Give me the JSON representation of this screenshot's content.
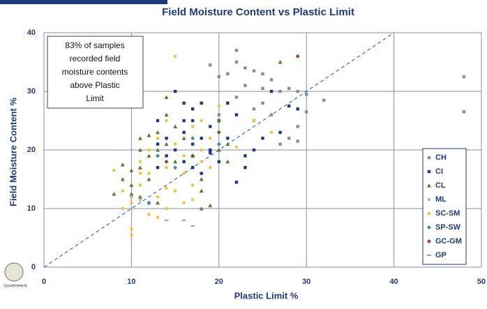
{
  "chart_data": {
    "type": "scatter",
    "title": "Field Moisture Content vs Plastic Limit",
    "x_label": "Plastic Limit %",
    "y_label": "Field Moisture Content %",
    "annotation": [
      "83% of samples",
      "recorded field",
      "moisture contents",
      "above Plastic",
      "Limit"
    ],
    "logo_text": "Government",
    "xlim": [
      0,
      50
    ],
    "ylim": [
      0,
      40
    ],
    "xticks": [
      0,
      10,
      20,
      30,
      40,
      50
    ],
    "yticks": [
      0,
      10,
      20,
      30,
      40
    ],
    "grid": true,
    "legend": "lower right",
    "series": [
      {
        "name": "CH",
        "color": "#8c8c8c",
        "marker": "square",
        "x": [
          19,
          20,
          22,
          21,
          22,
          23,
          24,
          25,
          26,
          27,
          28,
          29,
          30,
          30,
          32,
          48,
          48,
          29,
          29,
          27,
          28,
          25,
          24,
          22,
          21,
          20,
          26,
          23,
          25,
          24
        ],
        "y": [
          34.5,
          32.5,
          37,
          33,
          35,
          34,
          33.5,
          33,
          32,
          30,
          30.5,
          30,
          29.5,
          26.5,
          28.5,
          32.5,
          26.5,
          24,
          21.5,
          21,
          22,
          28,
          27,
          29,
          28,
          26,
          26,
          31,
          30.5,
          25
        ]
      },
      {
        "name": "CI",
        "color": "#1f3a7a",
        "marker": "square",
        "x": [
          15,
          16,
          17,
          18,
          17,
          16,
          14,
          13,
          13,
          15,
          16,
          17,
          18,
          19,
          20,
          21,
          22,
          22,
          23,
          24,
          20,
          18,
          19,
          21,
          26,
          27,
          28,
          29,
          25,
          23,
          13,
          14,
          17,
          19,
          16
        ],
        "y": [
          30,
          28,
          27,
          28,
          25,
          23,
          22,
          25,
          21,
          20,
          18,
          17,
          22,
          24,
          25,
          22,
          26,
          14.5,
          19,
          20,
          18,
          16,
          20,
          28,
          30,
          23,
          27.5,
          27,
          22,
          17,
          17,
          19,
          21,
          19.5,
          25
        ]
      },
      {
        "name": "CL",
        "color": "#5b7a2a",
        "marker": "triangle",
        "x": [
          8,
          9,
          9,
          10,
          10,
          11,
          11,
          11,
          12,
          12,
          13,
          13,
          14,
          14,
          14,
          15,
          16,
          17,
          18,
          18,
          19,
          20,
          21,
          21,
          10,
          11,
          12,
          15,
          27,
          20,
          18,
          13
        ],
        "y": [
          12.5,
          17.5,
          15,
          16.5,
          14,
          20,
          17,
          12,
          19,
          15,
          23,
          20,
          29,
          26,
          21,
          24,
          22,
          19,
          15,
          10,
          10.5,
          20,
          18,
          21,
          12.5,
          22,
          22.5,
          18,
          35,
          25,
          13,
          11
        ]
      },
      {
        "name": "ML",
        "color": "#b4b4b4",
        "marker": "circle",
        "x": [
          11,
          12,
          10
        ],
        "y": [
          11.5,
          10.8,
          12
        ]
      },
      {
        "name": "SC-SM",
        "color": "#f5c242",
        "marker": "circle",
        "x": [
          8,
          9,
          10,
          10,
          10,
          11,
          11,
          12,
          12,
          13,
          13,
          13,
          14,
          14,
          15,
          15,
          15,
          16,
          16,
          17,
          17,
          18,
          18,
          19,
          19,
          20,
          22,
          24,
          26,
          12,
          14,
          16,
          11,
          14,
          17,
          20,
          9,
          18
        ],
        "y": [
          16.5,
          13,
          5.5,
          6.5,
          11,
          14,
          18,
          16,
          20,
          8.5,
          12,
          22,
          25,
          17,
          36,
          21,
          13,
          19,
          16,
          24,
          14,
          20,
          18,
          22,
          17,
          23,
          20.5,
          25,
          23,
          9,
          10,
          11,
          16,
          13.5,
          11.5,
          27.5,
          10,
          25
        ]
      },
      {
        "name": "SP-SW",
        "color": "#4a8a8a",
        "marker": "diamond",
        "x": [
          13,
          15,
          17,
          20,
          12
        ],
        "y": [
          19,
          17,
          22,
          21,
          11
        ]
      },
      {
        "name": "GC-GM",
        "color": "#8a4a28",
        "marker": "diamond",
        "x": [
          14,
          17,
          20,
          29
        ],
        "y": [
          18,
          19,
          23,
          36
        ]
      },
      {
        "name": "GP",
        "color": "#a0a0a0",
        "marker": "dash",
        "x": [
          14,
          16,
          17
        ],
        "y": [
          8,
          8,
          7
        ]
      }
    ]
  }
}
